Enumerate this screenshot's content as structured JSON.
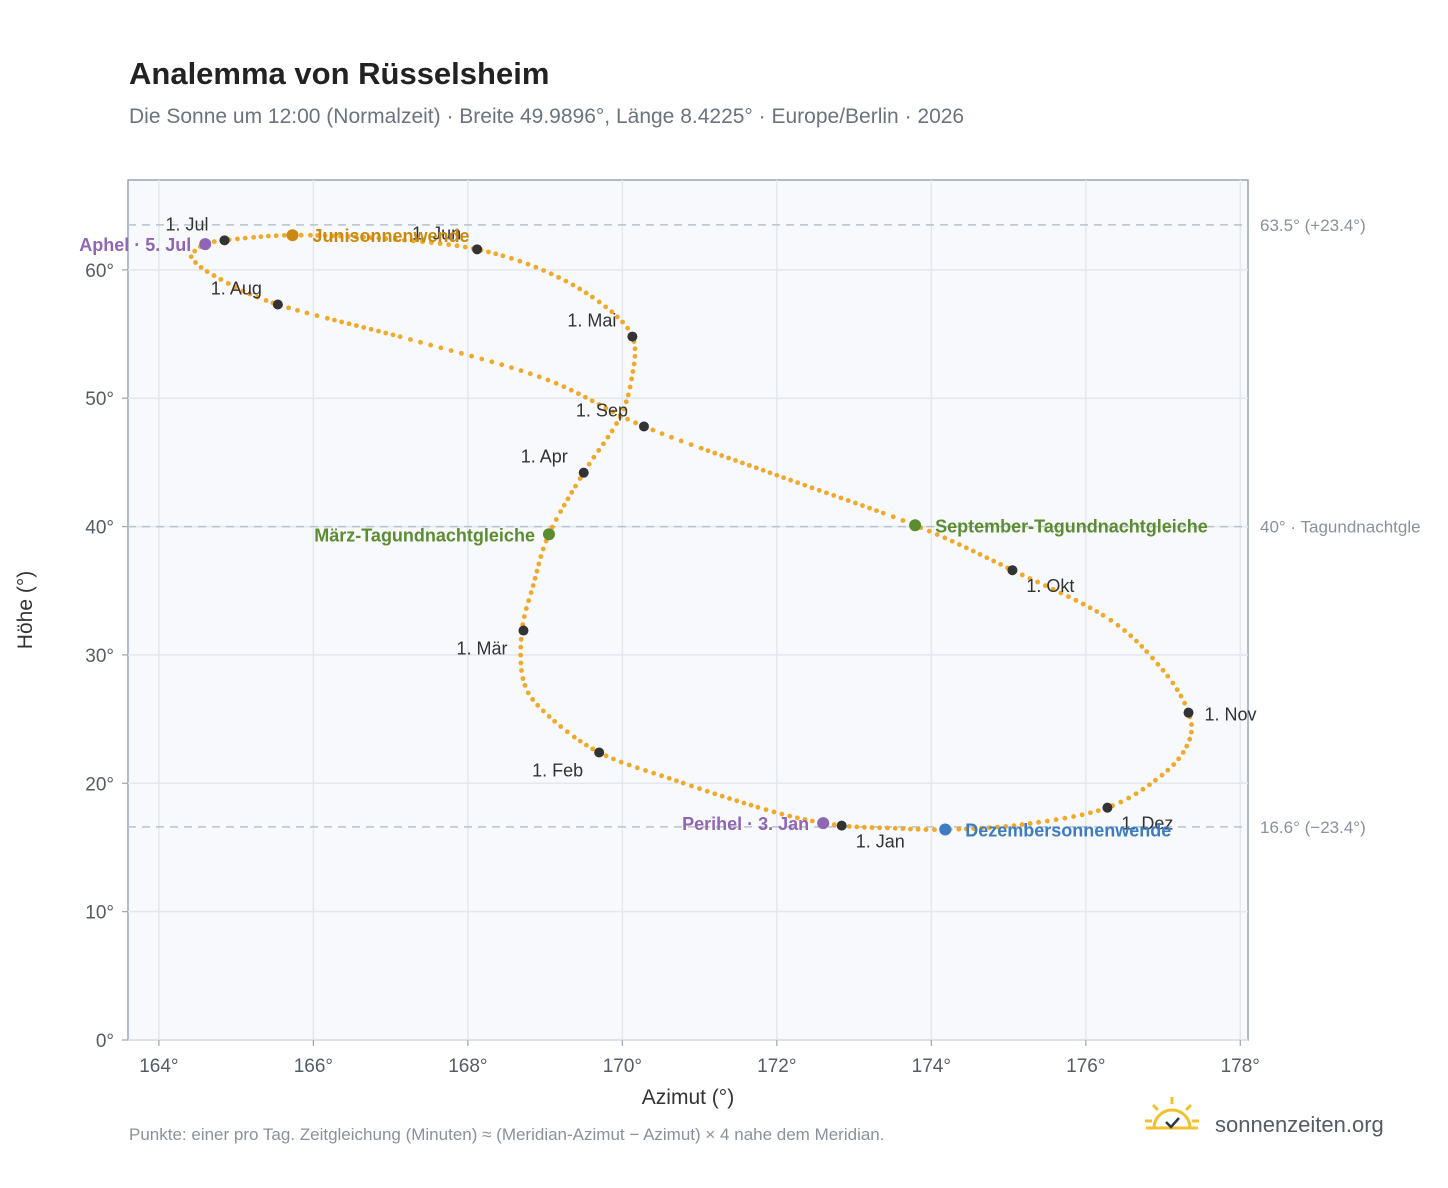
{
  "header": {
    "title": "Analemma von Rüsselsheim",
    "subtitle": "Die Sonne um 12:00 (Normalzeit) · Breite 49.9896°, Länge 8.4225° · Europe/Berlin · 2026"
  },
  "footer": {
    "note": "Punkte: einer pro Tag. Zeitgleichung (Minuten) ≈ (Meridian-Azimut − Azimut) × 4 nahe dem Meridian.",
    "brand": "sonnenzeiten.org",
    "brand_icon": "sun-check-icon"
  },
  "colors": {
    "curve": "#f0a928",
    "month_marker": "#333333",
    "aphel_perihel": "#9065b5",
    "equinox": "#5b8c30",
    "june_solstice": "#c98a0f",
    "december_solstice": "#3d7cc2",
    "reference_line": "#b8c2cc",
    "plot_background": "#f7f9fc"
  },
  "chart_data": {
    "type": "scatter",
    "title": "Analemma von Rüsselsheim",
    "xlabel": "Azimut (°)",
    "ylabel": "Höhe (°)",
    "xlim": [
      163.6,
      178.1
    ],
    "ylim": [
      0,
      67
    ],
    "x_ticks": [
      "164°",
      "166°",
      "168°",
      "170°",
      "172°",
      "174°",
      "176°",
      "178°"
    ],
    "y_ticks": [
      "0°",
      "10°",
      "20°",
      "30°",
      "40°",
      "50°",
      "60°"
    ],
    "grid": true,
    "series": [
      {
        "markers": "one point per day (daily analemma points)",
        "points": [
          {
            "x": 172.84,
            "y": 16.7
          },
          {
            "x": 172.2,
            "y": 17.4
          },
          {
            "x": 171.5,
            "y": 18.6
          },
          {
            "x": 170.7,
            "y": 20.2
          },
          {
            "x": 169.7,
            "y": 22.4
          },
          {
            "x": 169.0,
            "y": 25.5
          },
          {
            "x": 168.72,
            "y": 28.0
          },
          {
            "x": 168.7,
            "y": 31.9
          },
          {
            "x": 168.85,
            "y": 35.5
          },
          {
            "x": 169.05,
            "y": 39.4
          },
          {
            "x": 169.5,
            "y": 44.2
          },
          {
            "x": 169.95,
            "y": 48.3
          },
          {
            "x": 170.12,
            "y": 51.5
          },
          {
            "x": 170.13,
            "y": 54.8
          },
          {
            "x": 169.7,
            "y": 57.5
          },
          {
            "x": 169.0,
            "y": 59.9
          },
          {
            "x": 168.12,
            "y": 61.6
          },
          {
            "x": 167.0,
            "y": 62.4
          },
          {
            "x": 165.73,
            "y": 62.7
          },
          {
            "x": 164.85,
            "y": 62.3
          },
          {
            "x": 164.6,
            "y": 62.0
          },
          {
            "x": 164.5,
            "y": 61.6
          },
          {
            "x": 164.42,
            "y": 61.0
          },
          {
            "x": 164.7,
            "y": 59.6
          },
          {
            "x": 165.54,
            "y": 57.3
          },
          {
            "x": 167.3,
            "y": 54.5
          },
          {
            "x": 169.0,
            "y": 51.5
          },
          {
            "x": 170.28,
            "y": 47.8
          },
          {
            "x": 172.0,
            "y": 44.0
          },
          {
            "x": 173.79,
            "y": 40.1
          },
          {
            "x": 175.05,
            "y": 36.6
          },
          {
            "x": 176.3,
            "y": 32.8
          },
          {
            "x": 177.0,
            "y": 28.8
          },
          {
            "x": 177.33,
            "y": 25.5
          },
          {
            "x": 177.33,
            "y": 23.2
          },
          {
            "x": 177.0,
            "y": 20.7
          },
          {
            "x": 176.28,
            "y": 18.1
          },
          {
            "x": 175.2,
            "y": 16.8
          },
          {
            "x": 174.2,
            "y": 16.4
          },
          {
            "x": 173.5,
            "y": 16.5
          },
          {
            "x": 172.84,
            "y": 16.7
          }
        ]
      }
    ],
    "month_markers": [
      {
        "label": "1. Jan",
        "x": 172.84,
        "y": 16.7,
        "anchor": "below-right"
      },
      {
        "label": "1. Feb",
        "x": 169.7,
        "y": 22.4,
        "anchor": "below-left"
      },
      {
        "label": "1. Mär",
        "x": 168.72,
        "y": 31.9,
        "anchor": "below-left"
      },
      {
        "label": "1. Apr",
        "x": 169.5,
        "y": 44.2,
        "anchor": "above-left"
      },
      {
        "label": "1. Mai",
        "x": 170.13,
        "y": 54.8,
        "anchor": "above-left"
      },
      {
        "label": "1. Jun",
        "x": 168.12,
        "y": 61.6,
        "anchor": "above-left"
      },
      {
        "label": "1. Jul",
        "x": 164.85,
        "y": 62.3,
        "anchor": "above-left"
      },
      {
        "label": "1. Aug",
        "x": 165.54,
        "y": 57.3,
        "anchor": "above-left"
      },
      {
        "label": "1. Sep",
        "x": 170.28,
        "y": 47.8,
        "anchor": "above-left"
      },
      {
        "label": "1. Okt",
        "x": 175.05,
        "y": 36.6,
        "anchor": "below-right"
      },
      {
        "label": "1. Nov",
        "x": 177.33,
        "y": 25.5,
        "anchor": "right"
      },
      {
        "label": "1. Dez",
        "x": 176.28,
        "y": 18.1,
        "anchor": "below-right"
      }
    ],
    "special_points": [
      {
        "label": "Junisonnenwende",
        "x": 165.73,
        "y": 62.7,
        "color_key": "june_solstice",
        "anchor": "right"
      },
      {
        "label": "Aphel · 5. Jul",
        "x": 164.6,
        "y": 62.0,
        "color_key": "aphel_perihel",
        "anchor": "left"
      },
      {
        "label": "März-Tagundnachtgleiche",
        "x": 169.05,
        "y": 39.4,
        "color_key": "equinox",
        "anchor": "left"
      },
      {
        "label": "September-Tagundnachtgleiche",
        "x": 173.79,
        "y": 40.1,
        "color_key": "equinox",
        "anchor": "right"
      },
      {
        "label": "Perihel · 3. Jan",
        "x": 172.6,
        "y": 16.9,
        "color_key": "aphel_perihel",
        "anchor": "left"
      },
      {
        "label": "Dezembersonnenwende",
        "x": 174.18,
        "y": 16.4,
        "color_key": "december_solstice",
        "anchor": "right"
      }
    ],
    "reference_lines": [
      {
        "y": 63.5,
        "label": "63.5° (+23.4°)"
      },
      {
        "y": 40,
        "label": "40° · Tagundnachtgle"
      },
      {
        "y": 16.6,
        "label": "16.6° (−23.4°)"
      }
    ]
  }
}
